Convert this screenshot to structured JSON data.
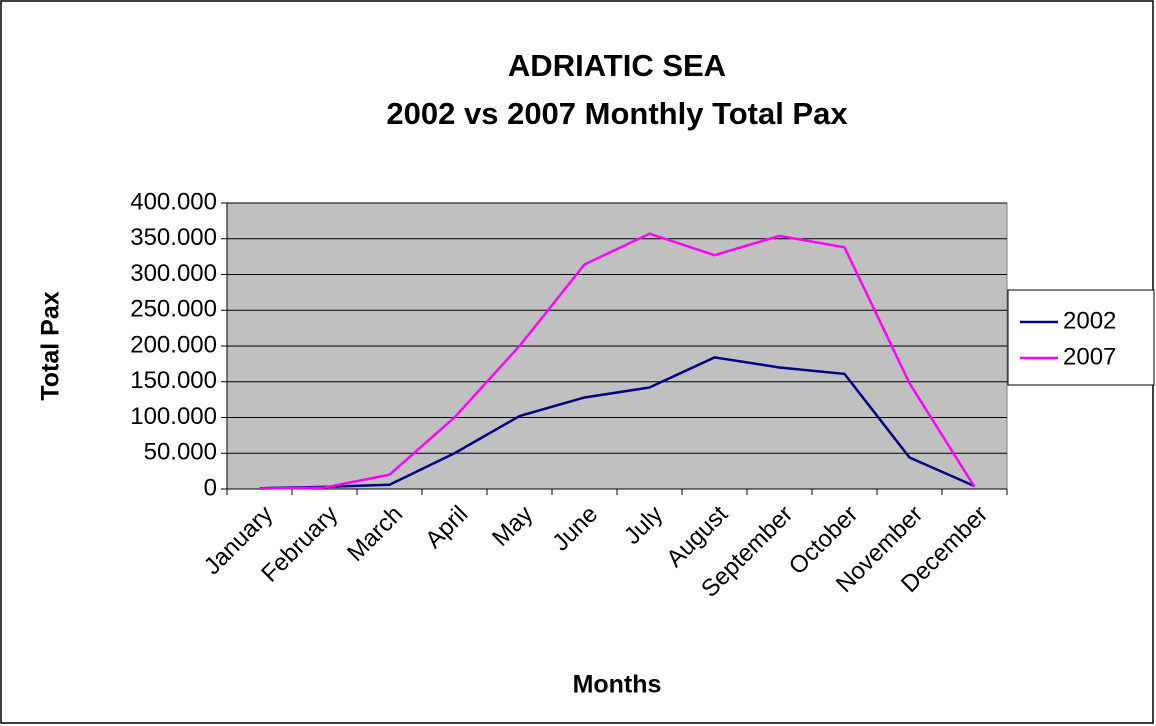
{
  "chart_data": {
    "type": "line",
    "title": "ADRIATIC SEA",
    "subtitle": "2002 vs 2007 Monthly Total Pax",
    "x_label": "Months",
    "y_label": "Total Pax",
    "categories": [
      "January",
      "February",
      "March",
      "April",
      "May",
      "June",
      "July",
      "August",
      "September",
      "October",
      "November",
      "December"
    ],
    "series": [
      {
        "name": "2002",
        "color": "#000080",
        "values": [
          1000,
          3000,
          6000,
          50000,
          102000,
          128000,
          142000,
          184000,
          170000,
          161000,
          44000,
          4000
        ]
      },
      {
        "name": "2007",
        "color": "#ff00ff",
        "values": [
          500,
          2000,
          20000,
          100000,
          200000,
          314000,
          357000,
          327000,
          354000,
          338000,
          148000,
          3000
        ]
      }
    ],
    "ylim": [
      0,
      400000
    ],
    "yticks": [
      0,
      {
        "value": 50000,
        "label": "50.000"
      },
      {
        "value": 100000,
        "label": "100.000"
      },
      {
        "value": 150000,
        "label": "150.000"
      },
      {
        "value": 200000,
        "label": "200.000"
      },
      {
        "value": 250000,
        "label": "250.000"
      },
      {
        "value": 300000,
        "label": "300.000"
      },
      {
        "value": 350000,
        "label": "350.000"
      },
      {
        "value": 400000,
        "label": "400.000"
      }
    ],
    "grid": true,
    "legend": "right"
  }
}
